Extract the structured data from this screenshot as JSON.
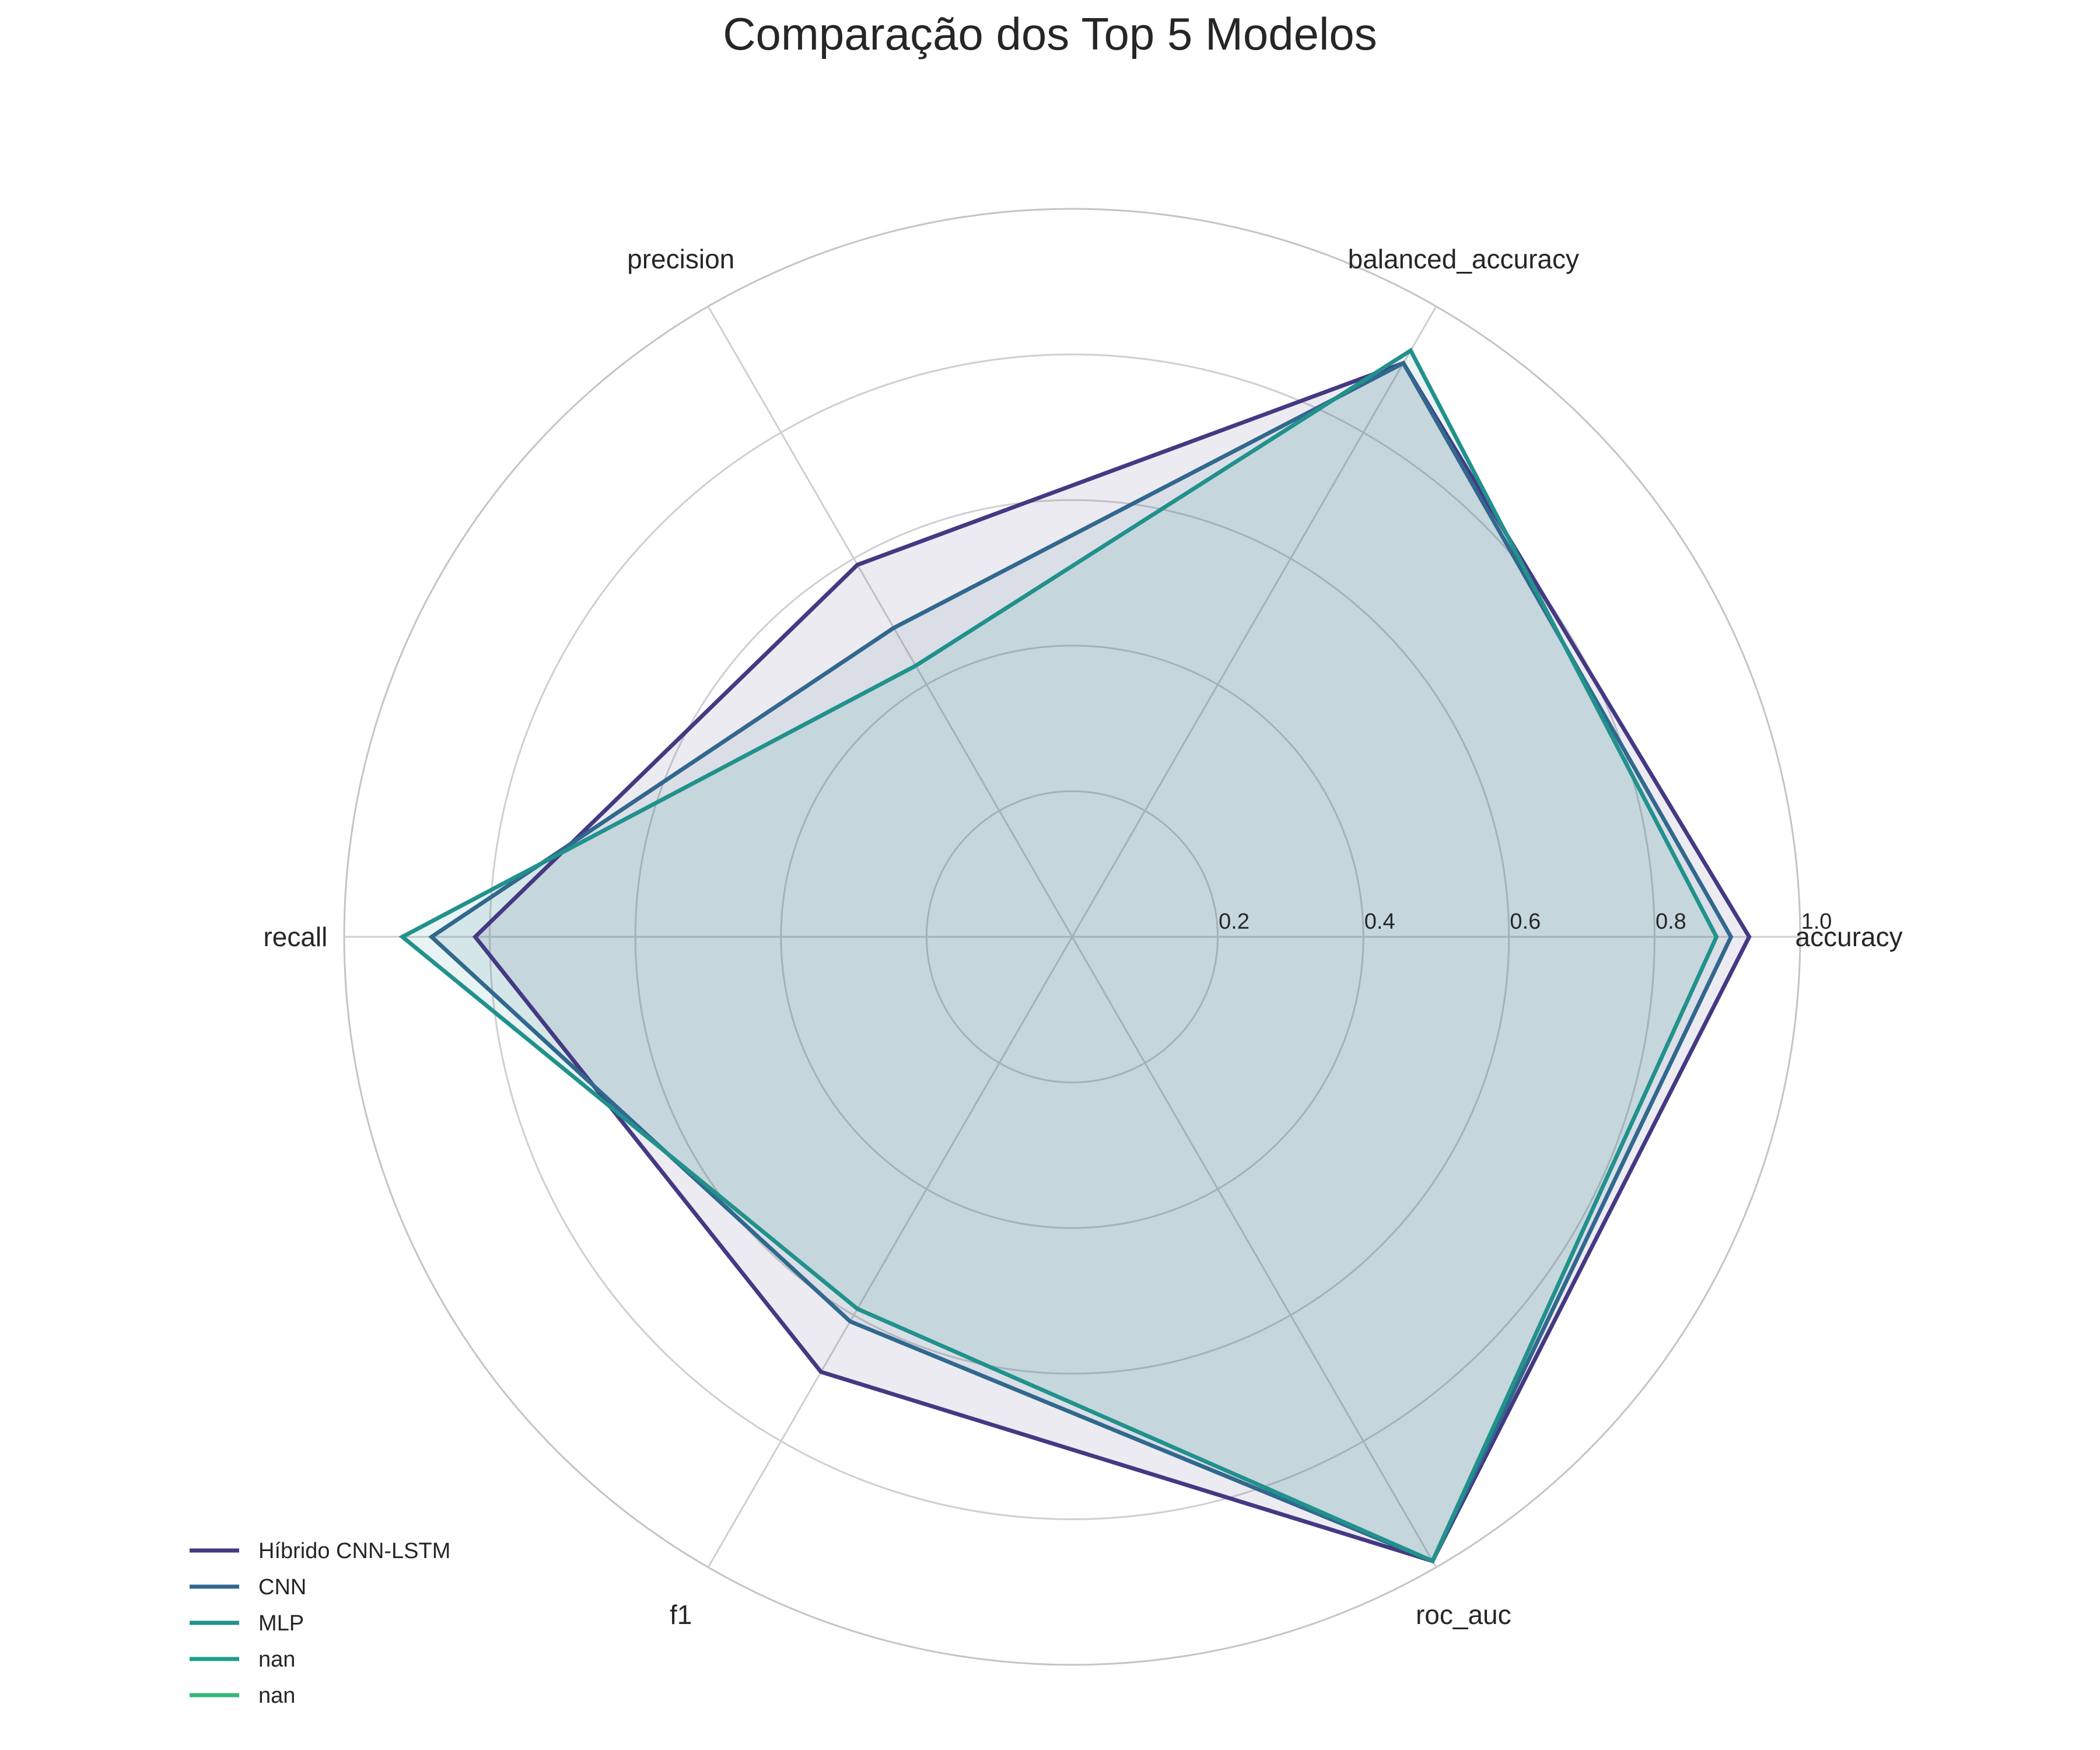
{
  "chart_data": {
    "type": "radar",
    "title": "Comparação dos Top 5 Modelos",
    "axes": [
      "accuracy",
      "balanced_accuracy",
      "precision",
      "recall",
      "f1",
      "roc_auc"
    ],
    "rlim": [
      0,
      1.0
    ],
    "rticks": [
      0.2,
      0.4,
      0.6,
      0.8,
      1.0
    ],
    "rtick_labels": [
      "0.2",
      "0.4",
      "0.6",
      "0.8",
      "1.0"
    ],
    "grid": true,
    "legend_position": "lower-left",
    "series": [
      {
        "name": "Híbrido CNN-LSTM",
        "values": [
          0.93,
          0.91,
          0.59,
          0.82,
          0.69,
          0.99
        ],
        "color": "#443983",
        "fill": true
      },
      {
        "name": "CNN",
        "values": [
          0.905,
          0.91,
          0.49,
          0.88,
          0.61,
          0.99
        ],
        "color": "#31688e",
        "fill": true
      },
      {
        "name": "MLP",
        "values": [
          0.885,
          0.93,
          0.43,
          0.92,
          0.59,
          0.99
        ],
        "color": "#21918c",
        "fill": true
      },
      {
        "name": "nan",
        "values": null,
        "color": "#1f9e89",
        "fill": false
      },
      {
        "name": "nan",
        "values": null,
        "color": "#35b779",
        "fill": false
      }
    ]
  }
}
